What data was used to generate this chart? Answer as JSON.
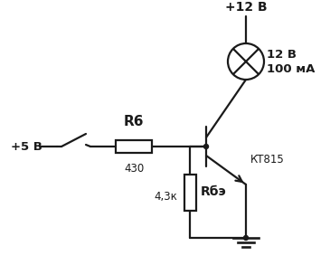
{
  "bg_color": "#ffffff",
  "line_color": "#1a1a1a",
  "line_width": 1.6,
  "text_color": "#1a1a1a",
  "components": {
    "vcc12_label": "+12 В",
    "vcc5_label": "+5 В",
    "lamp_label1": "12 В",
    "lamp_label2": "100 мА",
    "r6_label": "R6",
    "r6_value": "430",
    "rbe_label": "Rбэ",
    "rbe_value": "4,3к",
    "transistor_label": "КТ815"
  }
}
